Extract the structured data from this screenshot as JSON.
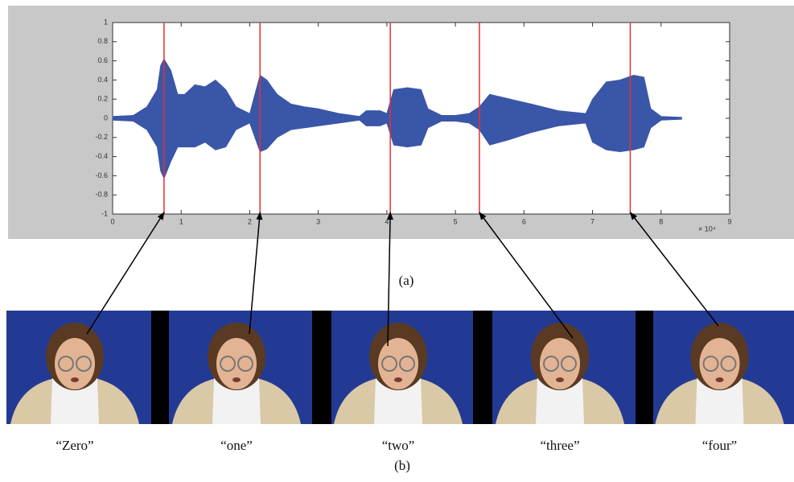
{
  "chart_data": {
    "type": "area",
    "x": [
      0,
      0.3,
      0.5,
      0.65,
      0.7,
      0.75,
      0.85,
      0.95,
      1.05,
      1.2,
      1.35,
      1.5,
      1.65,
      1.8,
      2.0,
      2.15,
      2.25,
      2.4,
      2.6,
      2.8,
      3.0,
      3.3,
      3.5,
      3.6,
      3.7,
      3.9,
      4.0,
      4.1,
      4.3,
      4.5,
      4.6,
      4.8,
      5.0,
      5.2,
      5.35,
      5.5,
      5.8,
      6.1,
      6.5,
      6.9,
      7.0,
      7.2,
      7.4,
      7.6,
      7.75,
      7.85,
      8.0,
      8.3
    ],
    "series": [
      {
        "color": "#3a56a8",
        "values": [
          0.02,
          0.03,
          0.12,
          0.3,
          0.55,
          0.62,
          0.5,
          0.25,
          0.25,
          0.35,
          0.33,
          0.4,
          0.3,
          0.12,
          0.05,
          0.45,
          0.4,
          0.25,
          0.15,
          0.12,
          0.1,
          0.05,
          0.03,
          0.02,
          0.08,
          0.08,
          0.05,
          0.3,
          0.32,
          0.3,
          0.1,
          0.03,
          0.03,
          0.05,
          0.12,
          0.25,
          0.2,
          0.15,
          0.08,
          0.05,
          0.2,
          0.38,
          0.4,
          0.45,
          0.43,
          0.1,
          0.02,
          0.01
        ]
      },
      {
        "color": "#3a56a8",
        "values": [
          -0.02,
          -0.03,
          -0.12,
          -0.3,
          -0.55,
          -0.63,
          -0.45,
          -0.3,
          -0.3,
          -0.3,
          -0.25,
          -0.33,
          -0.3,
          -0.12,
          -0.05,
          -0.35,
          -0.32,
          -0.2,
          -0.12,
          -0.1,
          -0.08,
          -0.05,
          -0.03,
          -0.02,
          -0.08,
          -0.08,
          -0.05,
          -0.28,
          -0.3,
          -0.28,
          -0.1,
          -0.03,
          -0.03,
          -0.05,
          -0.12,
          -0.28,
          -0.22,
          -0.15,
          -0.08,
          -0.05,
          -0.25,
          -0.33,
          -0.35,
          -0.33,
          -0.3,
          -0.1,
          -0.02,
          -0.01
        ]
      }
    ],
    "vlines": [
      0.75,
      2.15,
      4.05,
      5.35,
      7.55
    ],
    "vline_color": "#e83030",
    "xlim": [
      0,
      9
    ],
    "xticks": [
      0,
      1,
      2,
      3,
      4,
      5,
      6,
      7,
      8,
      9
    ],
    "ylim": [
      -1,
      1
    ],
    "yticks": [
      -1,
      -0.8,
      -0.6,
      -0.4,
      -0.2,
      0,
      0.2,
      0.4,
      0.6,
      0.8,
      1
    ],
    "x_multiplier": "× 10⁴"
  },
  "caption_a": "(a)",
  "frames": [
    "“Zero”",
    "“one”",
    "“two”",
    "“three”",
    "“four”"
  ],
  "caption_b": "(b)"
}
